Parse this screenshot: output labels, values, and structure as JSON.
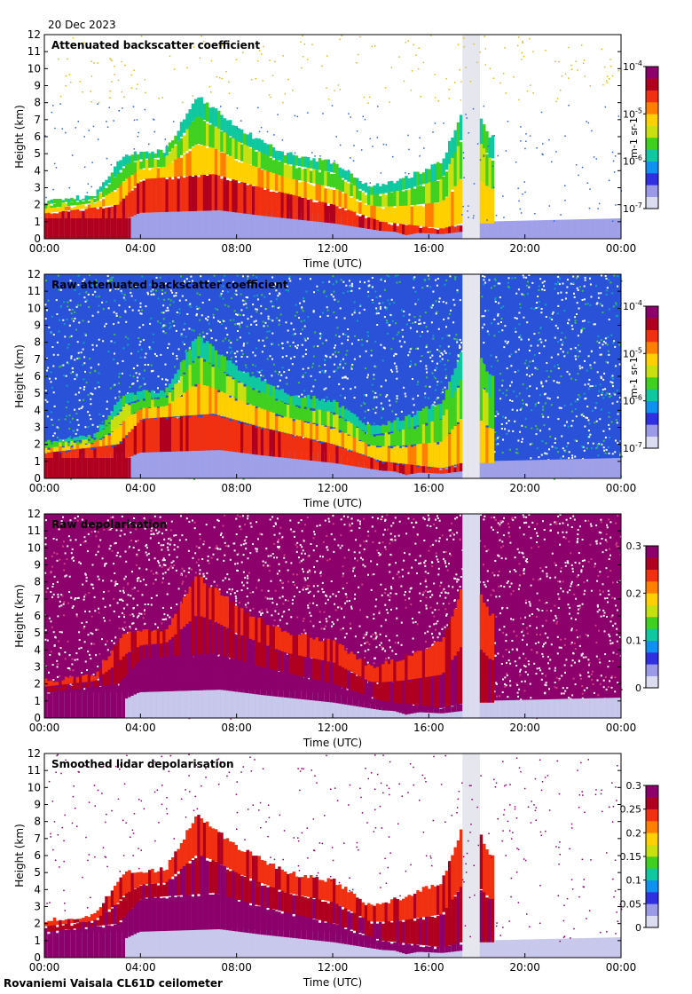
{
  "date_label": "20 Dec 2023",
  "site_label": "Rovaniemi Vaisala CL61D ceilometer",
  "colors": {
    "colormap": [
      "#dcdcf0",
      "#9a9ae6",
      "#3030e0",
      "#1090f0",
      "#10c8a0",
      "#40d020",
      "#c8e010",
      "#ffd000",
      "#ff8000",
      "#f03010",
      "#b00020",
      "#8c006c"
    ]
  },
  "chart_data": [
    {
      "type": "heatmap",
      "title": "Attenuated backscatter coefficient",
      "xlabel": "Time (UTC)",
      "ylabel": "Height (km)",
      "x_ticks": [
        "00:00",
        "04:00",
        "08:00",
        "12:00",
        "16:00",
        "20:00",
        "00:00"
      ],
      "y_ticks": [
        "0",
        "1",
        "2",
        "3",
        "4",
        "5",
        "6",
        "7",
        "8",
        "9",
        "10",
        "11",
        "12"
      ],
      "ylim": [
        0,
        12
      ],
      "colorbar": {
        "label": "m-1 sr-1",
        "tick_base": "10",
        "tick_exponents": [
          "-7",
          "-6",
          "-5",
          "-4"
        ],
        "tick_labels": []
      },
      "features": {
        "noise": "sparse",
        "gap_hours": [
          17.35,
          18.0
        ],
        "cloud_top_km": [
          [
            0.0,
            2.2
          ],
          [
            2.0,
            2.5
          ],
          [
            3.3,
            5.0
          ],
          [
            5.0,
            5.2
          ],
          [
            6.3,
            8.4
          ],
          [
            8.0,
            6.5
          ],
          [
            10.0,
            5.0
          ],
          [
            12.0,
            4.5
          ],
          [
            13.5,
            3.0
          ],
          [
            15.0,
            3.6
          ],
          [
            16.5,
            4.5
          ],
          [
            17.3,
            7.5
          ],
          [
            18.0,
            7.5
          ],
          [
            18.5,
            6.0
          ]
        ],
        "dense_top_km": [
          [
            0.0,
            1.5
          ],
          [
            3.0,
            2.0
          ],
          [
            4.0,
            3.5
          ],
          [
            7.0,
            3.8
          ],
          [
            9.0,
            3.0
          ],
          [
            12.0,
            2.0
          ],
          [
            14.0,
            1.0
          ],
          [
            16.5,
            0.6
          ],
          [
            17.3,
            0.9
          ]
        ],
        "boundary_layer_top_km": [
          [
            3.5,
            1.5
          ],
          [
            8.0,
            1.7
          ],
          [
            12.0,
            1.5
          ],
          [
            15.0,
            0.2
          ],
          [
            18.0,
            1.0
          ],
          [
            24.0,
            1.2
          ]
        ]
      }
    },
    {
      "type": "heatmap",
      "title": "Raw attenuated backscatter coefficient",
      "xlabel": "Time (UTC)",
      "ylabel": "Height (km)",
      "x_ticks": [
        "00:00",
        "04:00",
        "08:00",
        "12:00",
        "16:00",
        "20:00",
        "00:00"
      ],
      "y_ticks": [
        "0",
        "1",
        "2",
        "3",
        "4",
        "5",
        "6",
        "7",
        "8",
        "9",
        "10",
        "11",
        "12"
      ],
      "ylim": [
        0,
        12
      ],
      "colorbar": {
        "label": "m-1 sr-1",
        "tick_base": "10",
        "tick_exponents": [
          "-7",
          "-6",
          "-5",
          "-4"
        ],
        "tick_labels": []
      },
      "features": {
        "noise": "dense",
        "gap_hours": [
          17.35,
          18.0
        ]
      }
    },
    {
      "type": "heatmap",
      "title": "Raw depolarisation",
      "xlabel": "Time (UTC)",
      "ylabel": "Height (km)",
      "x_ticks": [
        "00:00",
        "04:00",
        "08:00",
        "12:00",
        "16:00",
        "20:00",
        "00:00"
      ],
      "y_ticks": [
        "0",
        "1",
        "2",
        "3",
        "4",
        "5",
        "6",
        "7",
        "8",
        "9",
        "10",
        "11",
        "12"
      ],
      "ylim": [
        0,
        12
      ],
      "colorbar": {
        "label": "",
        "tick_base": "",
        "tick_exponents": [],
        "tick_labels": [
          "0",
          "0.1",
          "0.2",
          "0.3"
        ]
      },
      "features": {
        "noise": "saturated",
        "gap_hours": [
          17.35,
          18.0
        ]
      }
    },
    {
      "type": "heatmap",
      "title": "Smoothed lidar depolarisation",
      "xlabel": "Time (UTC)",
      "ylabel": "Height (km)",
      "x_ticks": [
        "00:00",
        "04:00",
        "08:00",
        "12:00",
        "16:00",
        "20:00",
        "00:00"
      ],
      "y_ticks": [
        "0",
        "1",
        "2",
        "3",
        "4",
        "5",
        "6",
        "7",
        "8",
        "9",
        "10",
        "11",
        "12"
      ],
      "ylim": [
        0,
        12
      ],
      "colorbar": {
        "label": "",
        "tick_base": "",
        "tick_exponents": [],
        "tick_labels": [
          "0",
          "0.05",
          "0.1",
          "0.15",
          "0.2",
          "0.25",
          "0.3"
        ]
      },
      "features": {
        "noise": "sparse",
        "gap_hours": [
          17.35,
          18.0
        ]
      }
    }
  ]
}
